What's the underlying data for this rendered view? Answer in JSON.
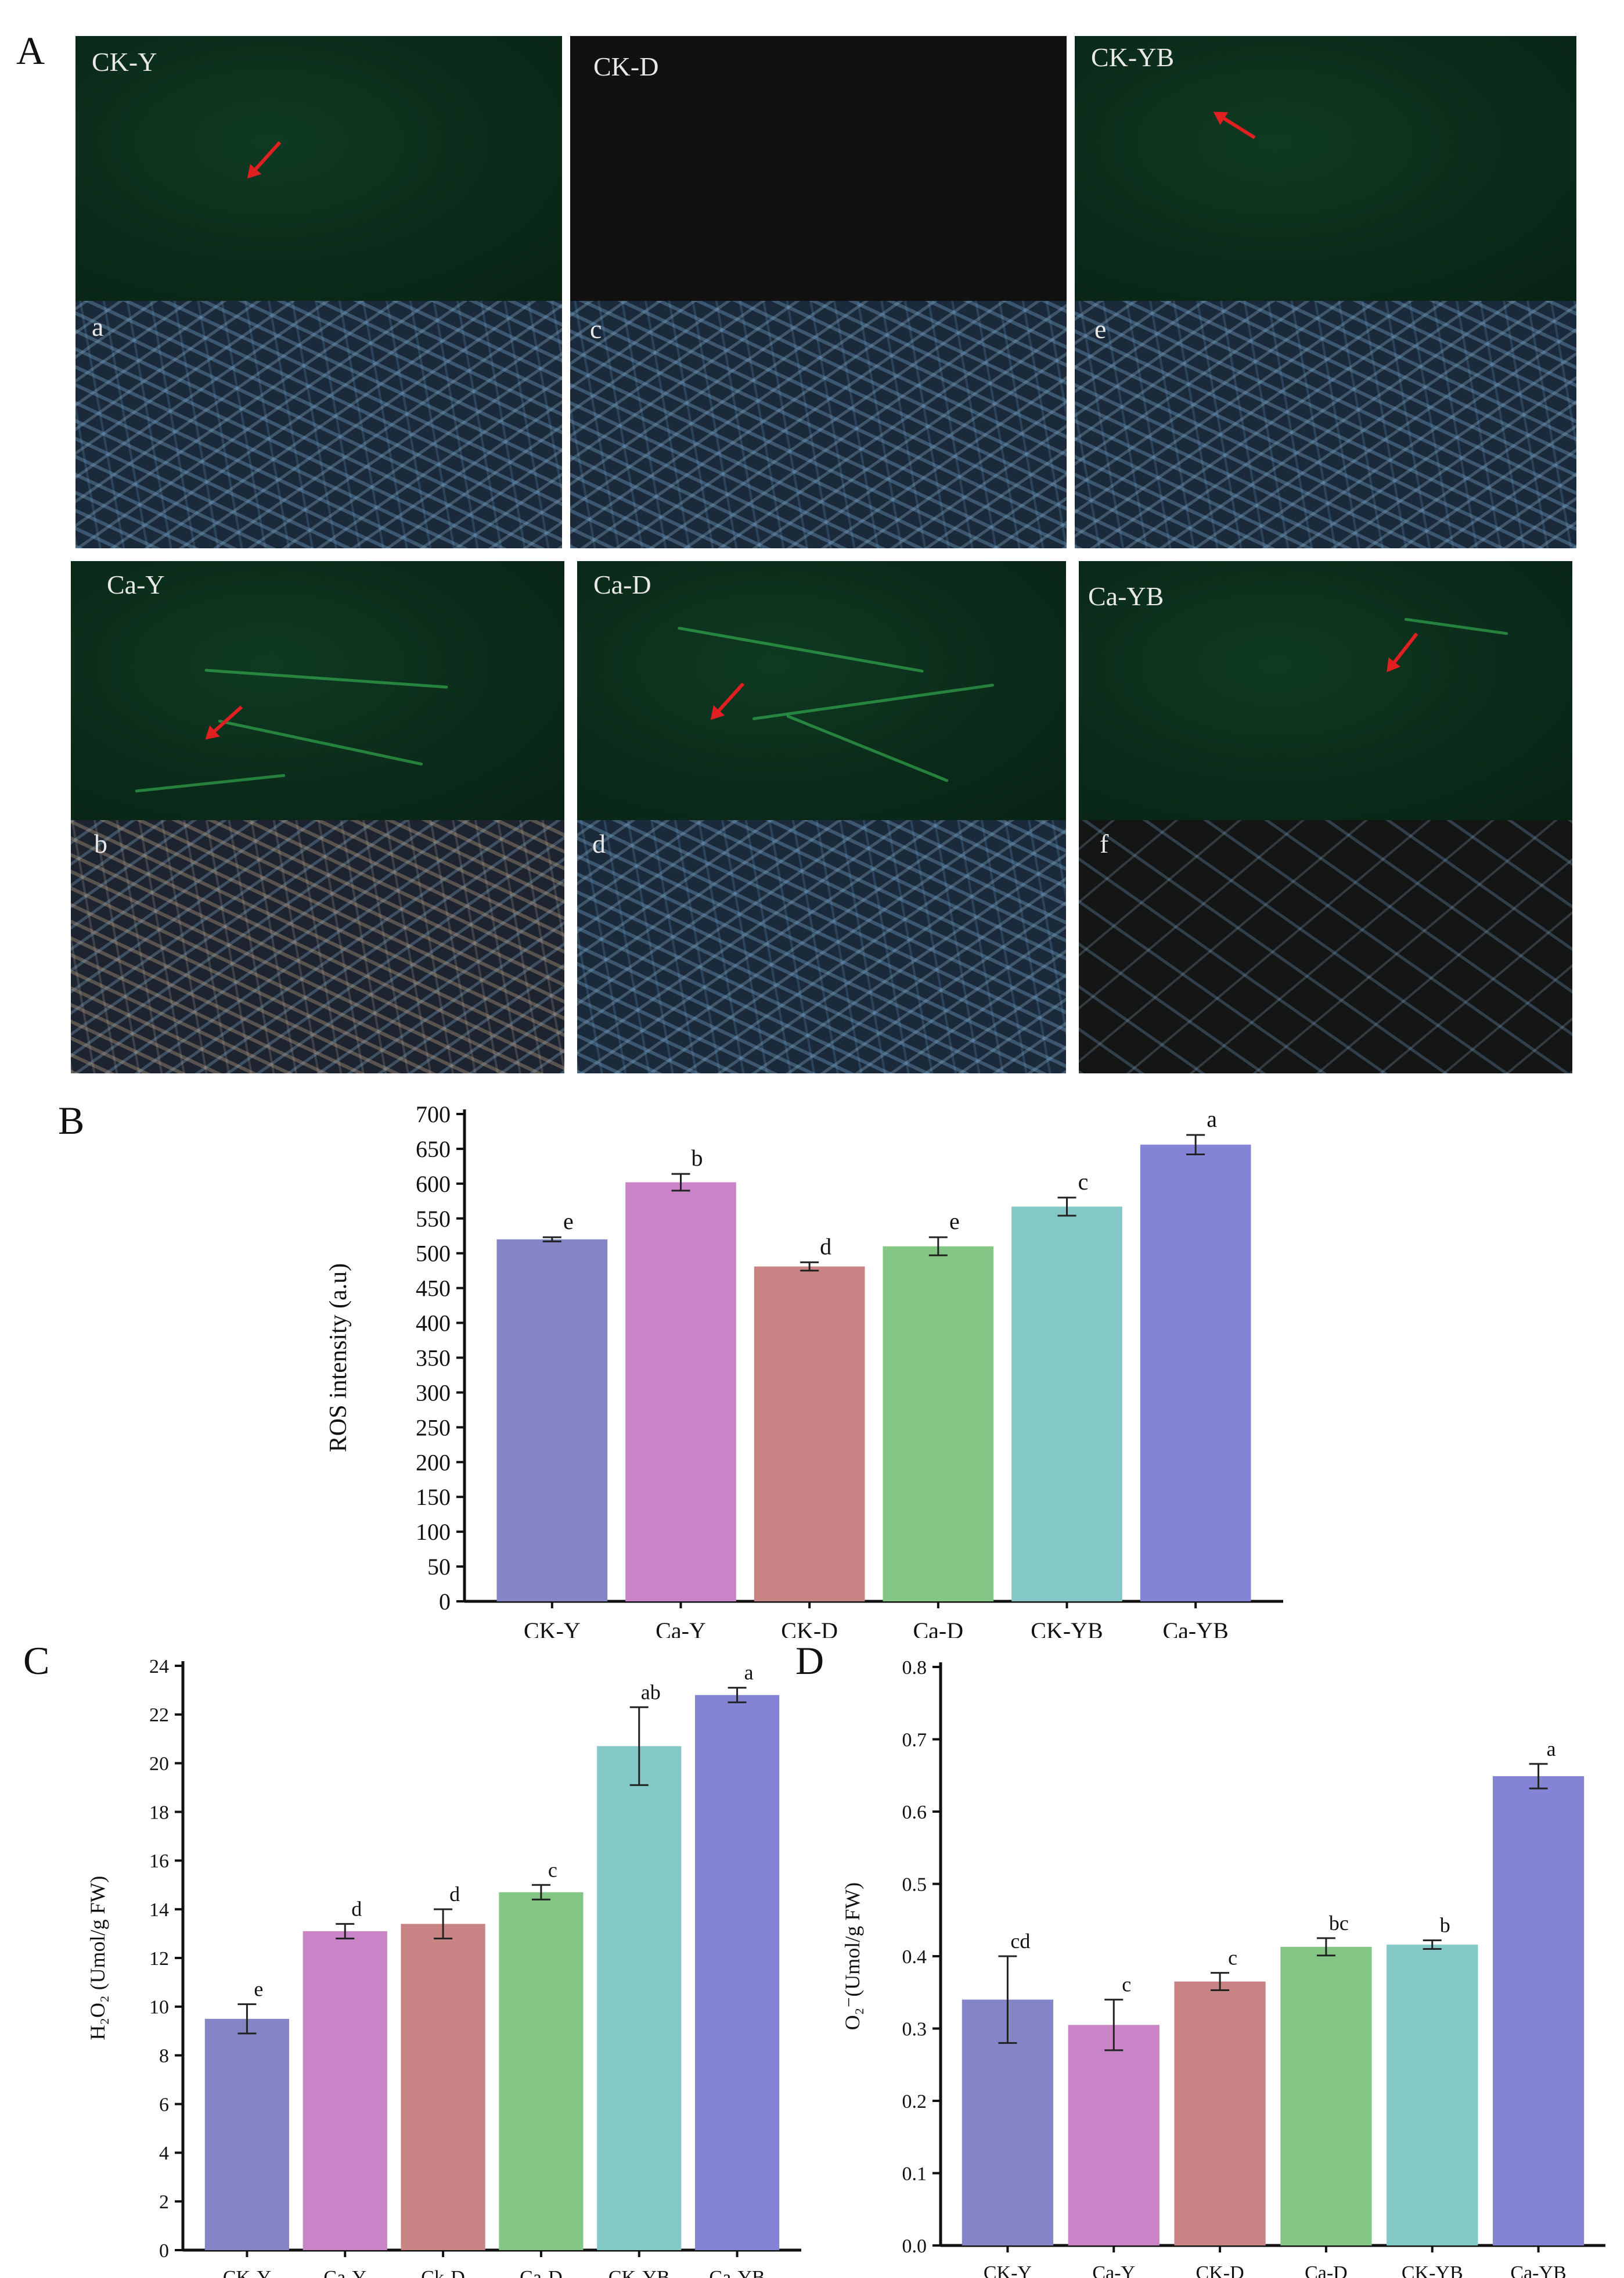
{
  "panel_a": {
    "letter": "A",
    "fluorescence_labels": [
      "CK-Y",
      "CK-D",
      "CK-YB",
      "Ca-Y",
      "Ca-D",
      "Ca-YB"
    ],
    "brightfield_labels": [
      "a",
      "c",
      "e",
      "b",
      "d",
      "f"
    ]
  },
  "panel_b": {
    "letter": "B"
  },
  "panel_c": {
    "letter": "C"
  },
  "panel_d": {
    "letter": "D"
  },
  "chart_data": [
    {
      "id": "B",
      "type": "bar",
      "categories": [
        "CK-Y",
        "Ca-Y",
        "CK-D",
        "Ca-D",
        "CK-YB",
        "Ca-YB"
      ],
      "values": [
        520,
        602,
        481,
        510,
        567,
        656
      ],
      "errors": [
        3,
        12,
        6,
        13,
        13,
        14
      ],
      "letters": [
        "e",
        "b",
        "d",
        "e",
        "c",
        "a"
      ],
      "colors": [
        "#8484c7",
        "#c884c7",
        "#c88484",
        "#84c784",
        "#84c7c7",
        "#8484d6"
      ],
      "xlabel": "",
      "ylabel": "ROS intensity (a.u)",
      "ylim": [
        0,
        700
      ],
      "yticks": [
        0,
        50,
        100,
        150,
        200,
        250,
        300,
        350,
        400,
        450,
        500,
        550,
        600,
        650,
        700
      ]
    },
    {
      "id": "C",
      "type": "bar",
      "categories": [
        "CK-Y",
        "Ca-Y",
        "Ck-D",
        "Ca-D",
        "CK-YB",
        "Ca-YB"
      ],
      "values": [
        9.5,
        13.1,
        13.4,
        14.7,
        20.7,
        22.8
      ],
      "errors": [
        0.6,
        0.3,
        0.6,
        0.3,
        1.6,
        0.3
      ],
      "letters": [
        "e",
        "d",
        "d",
        "c",
        "ab",
        "a"
      ],
      "colors": [
        "#8484c7",
        "#c884c7",
        "#c88484",
        "#84c784",
        "#84c7c7",
        "#8484d6"
      ],
      "xlabel": "",
      "ylabel": "H₂O₂ (Umol/g FW)",
      "ylim": [
        0,
        24
      ],
      "yticks": [
        0,
        2,
        4,
        6,
        8,
        10,
        12,
        14,
        16,
        18,
        20,
        22,
        24
      ]
    },
    {
      "id": "D",
      "type": "bar",
      "categories": [
        "CK-Y",
        "Ca-Y",
        "CK-D",
        "Ca-D",
        "CK-YB",
        "Ca-YB"
      ],
      "values": [
        0.34,
        0.305,
        0.365,
        0.413,
        0.416,
        0.649
      ],
      "errors": [
        0.06,
        0.035,
        0.012,
        0.012,
        0.006,
        0.017
      ],
      "letters": [
        "cd",
        "c",
        "c",
        "bc",
        "b",
        "a"
      ],
      "colors": [
        "#8484c7",
        "#c884c7",
        "#c88484",
        "#84c784",
        "#84c7c7",
        "#8484d6"
      ],
      "xlabel": "",
      "ylabel": "O₂⁻(Umol/g FW)",
      "ylim": [
        0,
        0.8
      ],
      "yticks": [
        "0.0",
        "0.1",
        "0.2",
        "0.3",
        "0.4",
        "0.5",
        "0.6",
        "0.7",
        "0.8"
      ]
    }
  ]
}
